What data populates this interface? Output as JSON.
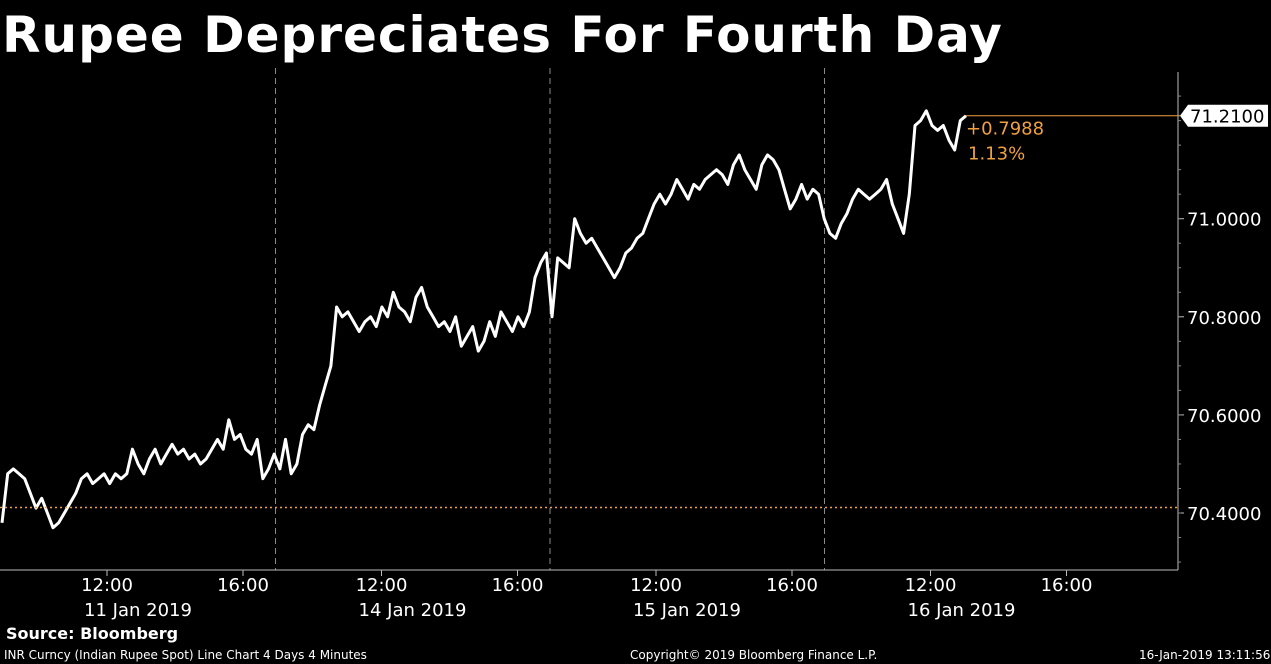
{
  "title": "Rupee Depreciates For Fourth Day",
  "source": "Source: Bloomberg",
  "footer": {
    "left": "INR Curncy (Indian Rupee Spot) Line Chart 4 Days 4 Minutes",
    "center": "Copyright© 2019 Bloomberg Finance L.P.",
    "right": "16-Jan-2019 13:11:56"
  },
  "colors": {
    "background": "#000000",
    "line": "#ffffff",
    "accent": "#f0a040"
  },
  "chart_data": {
    "type": "line",
    "ylim": [
      70.3,
      71.3
    ],
    "yticks": [
      "70.4000",
      "70.6000",
      "70.8000",
      "71.0000"
    ],
    "xtick_times": [
      "12:00",
      "16:00",
      "12:00",
      "16:00",
      "12:00",
      "16:00",
      "12:00",
      "16:00"
    ],
    "days": [
      "11 Jan 2019",
      "14 Jan 2019",
      "15 Jan 2019",
      "16 Jan 2019"
    ],
    "last_value_label": "71.2100",
    "change": "+0.7988",
    "change_pct": "1.13%",
    "reference_value": 70.4112,
    "series": [
      {
        "values": [
          70.38,
          70.48,
          70.49,
          70.48,
          70.47,
          70.44,
          70.41,
          70.43,
          70.4,
          70.37,
          70.38,
          70.4,
          70.42,
          70.44,
          70.47,
          70.48,
          70.46,
          70.47,
          70.48,
          70.46,
          70.48,
          70.47,
          70.48,
          70.53,
          70.5,
          70.48,
          70.51,
          70.53,
          70.5,
          70.52,
          70.54,
          70.52,
          70.53,
          70.51,
          70.52,
          70.5,
          70.51,
          70.53,
          70.55,
          70.53,
          70.59,
          70.55,
          70.56,
          70.53,
          70.52,
          70.55,
          70.47,
          70.49,
          70.52,
          70.49,
          70.55,
          70.48,
          70.5,
          70.56,
          70.58,
          70.57,
          70.62,
          70.66,
          70.7,
          70.82,
          70.8,
          70.81,
          70.79,
          70.77,
          70.79,
          70.8,
          70.78,
          70.82,
          70.8,
          70.85,
          70.82,
          70.81,
          70.79,
          70.84,
          70.86,
          70.82,
          70.8,
          70.78,
          70.79,
          70.77,
          70.8,
          70.74,
          70.76,
          70.78,
          70.73,
          70.75,
          70.79,
          70.76,
          70.81,
          70.79,
          70.77,
          70.8,
          70.78,
          70.81,
          70.88,
          70.91,
          70.93,
          70.8,
          70.92,
          70.91,
          70.9,
          71.0,
          70.97,
          70.95,
          70.96,
          70.94,
          70.92,
          70.9,
          70.88,
          70.9,
          70.93,
          70.94,
          70.96,
          70.97,
          71.0,
          71.03,
          71.05,
          71.03,
          71.05,
          71.08,
          71.06,
          71.04,
          71.07,
          71.06,
          71.08,
          71.09,
          71.1,
          71.09,
          71.07,
          71.11,
          71.13,
          71.1,
          71.08,
          71.06,
          71.11,
          71.13,
          71.12,
          71.1,
          71.06,
          71.02,
          71.04,
          71.07,
          71.04,
          71.06,
          71.05,
          71.0,
          70.97,
          70.96,
          70.99,
          71.01,
          71.04,
          71.06,
          71.05,
          71.04,
          71.05,
          71.06,
          71.08,
          71.03,
          71.0,
          70.97,
          71.05,
          71.19,
          71.2,
          71.22,
          71.19,
          71.18,
          71.19,
          71.16,
          71.14,
          71.2,
          71.21
        ]
      }
    ]
  }
}
